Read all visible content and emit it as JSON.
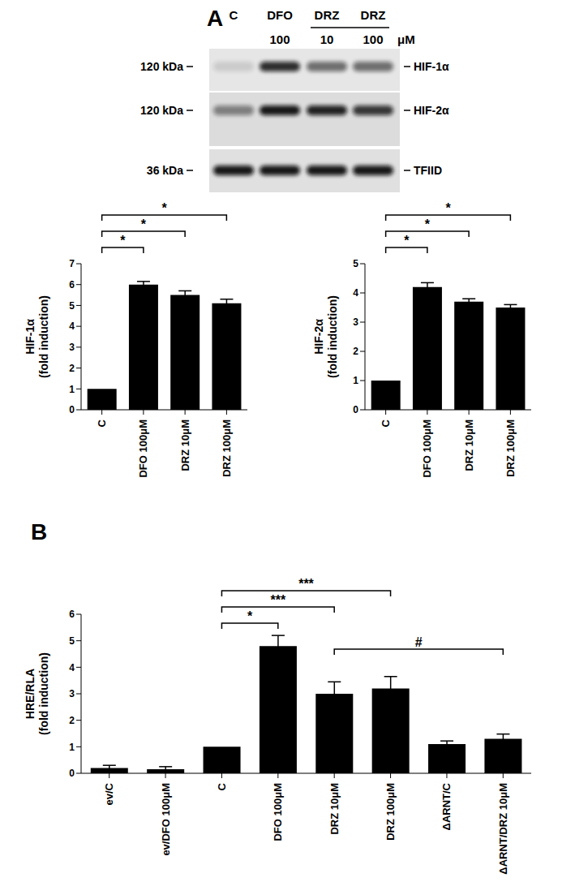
{
  "panel_labels": [
    "A",
    "B"
  ],
  "blot": {
    "lanes": [
      {
        "label": "C",
        "dose": null
      },
      {
        "label": "DFO",
        "dose": 100
      },
      {
        "label": "DRZ",
        "dose": 10
      },
      {
        "label": "DRZ",
        "dose": 100
      }
    ],
    "dose_unit": "μM",
    "rows": [
      {
        "size": "120 kDa",
        "protein": "HIF-1α"
      },
      {
        "size": "120 kDa",
        "protein": "HIF-2α"
      },
      {
        "size": "36 kDa",
        "protein": "TFIID"
      }
    ]
  },
  "chart_data": [
    {
      "type": "bar",
      "y_label": "HIF-1α\n(fold induction)",
      "categories": [
        "C",
        "DFO 100μM",
        "DRZ 10μM",
        "DRZ 100μM"
      ],
      "values": [
        1,
        6.0,
        5.5,
        5.1
      ],
      "errors": [
        0,
        0.15,
        0.2,
        0.2
      ],
      "color": "#000000",
      "ylim": [
        0,
        7
      ],
      "yticks": [
        0,
        1,
        2,
        3,
        4,
        5,
        6,
        7
      ],
      "comparisons": [
        {
          "from": "C",
          "to": "DFO 100μM",
          "label": "*"
        },
        {
          "from": "C",
          "to": "DRZ 10μM",
          "label": "*"
        },
        {
          "from": "C",
          "to": "DRZ 100μM",
          "label": "*"
        }
      ]
    },
    {
      "type": "bar",
      "y_label": "HIF-2α\n(fold induction)",
      "categories": [
        "C",
        "DFO 100μM",
        "DRZ 10μM",
        "DRZ 100μM"
      ],
      "values": [
        1,
        4.2,
        3.7,
        3.5
      ],
      "errors": [
        0,
        0.15,
        0.1,
        0.1
      ],
      "color": "#000000",
      "ylim": [
        0,
        5
      ],
      "yticks": [
        0,
        1,
        2,
        3,
        4,
        5
      ],
      "comparisons": [
        {
          "from": "C",
          "to": "DFO 100μM",
          "label": "*"
        },
        {
          "from": "C",
          "to": "DRZ 10μM",
          "label": "*"
        },
        {
          "from": "C",
          "to": "DRZ 100μM",
          "label": "*"
        }
      ]
    },
    {
      "type": "bar",
      "y_label": "HRE/RLA\n(fold induction)",
      "categories": [
        "ev/C",
        "ev/DFO 100μM",
        "C",
        "DFO 100μM",
        "DRZ 10μM",
        "DRZ 100μM",
        "ΔARNT/C",
        "ΔARNT/DRZ 10μM"
      ],
      "values": [
        0.2,
        0.15,
        1,
        4.8,
        3.0,
        3.2,
        1.1,
        1.3
      ],
      "errors": [
        0.1,
        0.1,
        0,
        0.4,
        0.45,
        0.45,
        0.12,
        0.18
      ],
      "color": "#000000",
      "ylim": [
        0,
        6
      ],
      "yticks": [
        0,
        1,
        2,
        3,
        4,
        5,
        6
      ],
      "comparisons": [
        {
          "from": "C",
          "to": "DFO 100μM",
          "label": "*"
        },
        {
          "from": "C",
          "to": "DRZ 10μM",
          "label": "***"
        },
        {
          "from": "C",
          "to": "DRZ 100μM",
          "label": "***"
        },
        {
          "from": "DRZ 10μM",
          "to": "ΔARNT/DRZ 10μM",
          "label": "#"
        }
      ]
    }
  ]
}
